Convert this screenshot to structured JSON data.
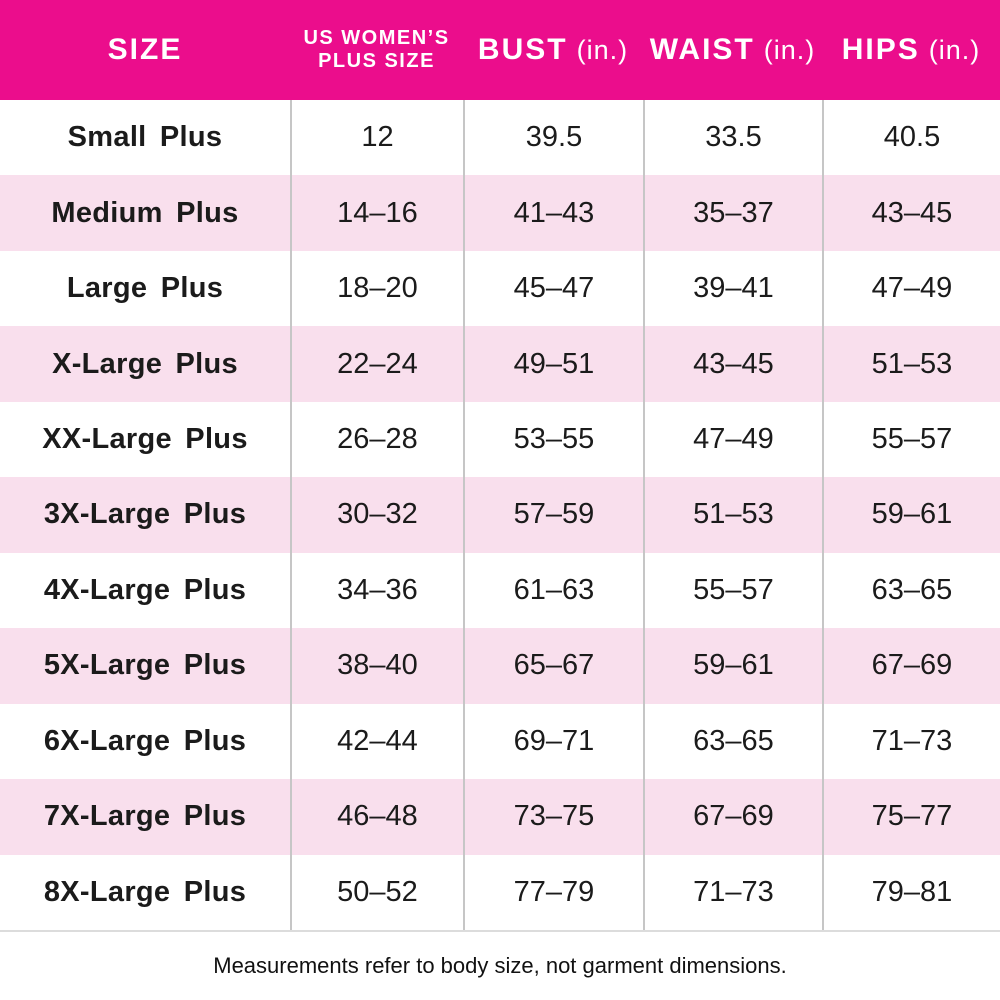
{
  "colors": {
    "header_bg": "#EB0D8C",
    "header_text": "#FFFFFF",
    "row_bg": "#FFFFFF",
    "row_alt_bg": "#F9DFED",
    "body_text": "#1B1B1B",
    "column_separator": "#C6C6C6",
    "table_bottom_border": "#DCDCDC"
  },
  "header": {
    "size": "SIZE",
    "us_plus_line1": "US WOMEN’S",
    "us_plus_line2": "PLUS SIZE",
    "bust": "BUST",
    "bust_unit": "(in.)",
    "waist": "WAIST",
    "waist_unit": "(in.)",
    "hips": "HIPS",
    "hips_unit": "(in.)"
  },
  "rows": [
    {
      "size": "Small Plus",
      "us_plus": "12",
      "bust": "39.5",
      "waist": "33.5",
      "hips": "40.5"
    },
    {
      "size": "Medium Plus",
      "us_plus": "14–16",
      "bust": "41–43",
      "waist": "35–37",
      "hips": "43–45"
    },
    {
      "size": "Large Plus",
      "us_plus": "18–20",
      "bust": "45–47",
      "waist": "39–41",
      "hips": "47–49"
    },
    {
      "size": "X-Large Plus",
      "us_plus": "22–24",
      "bust": "49–51",
      "waist": "43–45",
      "hips": "51–53"
    },
    {
      "size": "XX-Large Plus",
      "us_plus": "26–28",
      "bust": "53–55",
      "waist": "47–49",
      "hips": "55–57"
    },
    {
      "size": "3X-Large Plus",
      "us_plus": "30–32",
      "bust": "57–59",
      "waist": "51–53",
      "hips": "59–61"
    },
    {
      "size": "4X-Large Plus",
      "us_plus": "34–36",
      "bust": "61–63",
      "waist": "55–57",
      "hips": "63–65"
    },
    {
      "size": "5X-Large Plus",
      "us_plus": "38–40",
      "bust": "65–67",
      "waist": "59–61",
      "hips": "67–69"
    },
    {
      "size": "6X-Large Plus",
      "us_plus": "42–44",
      "bust": "69–71",
      "waist": "63–65",
      "hips": "71–73"
    },
    {
      "size": "7X-Large Plus",
      "us_plus": "46–48",
      "bust": "73–75",
      "waist": "67–69",
      "hips": "75–77"
    },
    {
      "size": "8X-Large Plus",
      "us_plus": "50–52",
      "bust": "77–79",
      "waist": "71–73",
      "hips": "79–81"
    }
  ],
  "footer": {
    "note": "Measurements refer to body size, not garment dimensions."
  },
  "chart_data": {
    "type": "table",
    "columns": [
      "SIZE",
      "US WOMEN’S PLUS SIZE",
      "BUST (in.)",
      "WAIST (in.)",
      "HIPS (in.)"
    ],
    "rows": [
      [
        "Small Plus",
        "12",
        "39.5",
        "33.5",
        "40.5"
      ],
      [
        "Medium Plus",
        "14–16",
        "41–43",
        "35–37",
        "43–45"
      ],
      [
        "Large Plus",
        "18–20",
        "45–47",
        "39–41",
        "47–49"
      ],
      [
        "X-Large Plus",
        "22–24",
        "49–51",
        "43–45",
        "51–53"
      ],
      [
        "XX-Large Plus",
        "26–28",
        "53–55",
        "47–49",
        "55–57"
      ],
      [
        "3X-Large Plus",
        "30–32",
        "57–59",
        "51–53",
        "59–61"
      ],
      [
        "4X-Large Plus",
        "34–36",
        "61–63",
        "55–57",
        "63–65"
      ],
      [
        "5X-Large Plus",
        "38–40",
        "65–67",
        "59–61",
        "67–69"
      ],
      [
        "6X-Large Plus",
        "42–44",
        "69–71",
        "63–65",
        "71–73"
      ],
      [
        "7X-Large Plus",
        "46–48",
        "73–75",
        "67–69",
        "75–77"
      ],
      [
        "8X-Large Plus",
        "50–52",
        "77–79",
        "71–73",
        "79–81"
      ]
    ],
    "note": "Measurements refer to body size, not garment dimensions."
  }
}
